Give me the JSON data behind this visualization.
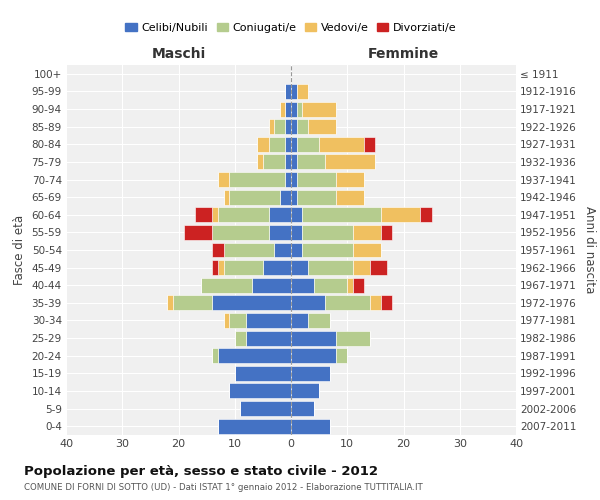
{
  "age_groups": [
    "0-4",
    "5-9",
    "10-14",
    "15-19",
    "20-24",
    "25-29",
    "30-34",
    "35-39",
    "40-44",
    "45-49",
    "50-54",
    "55-59",
    "60-64",
    "65-69",
    "70-74",
    "75-79",
    "80-84",
    "85-89",
    "90-94",
    "95-99",
    "100+"
  ],
  "birth_years": [
    "2007-2011",
    "2002-2006",
    "1997-2001",
    "1992-1996",
    "1987-1991",
    "1982-1986",
    "1977-1981",
    "1972-1976",
    "1967-1971",
    "1962-1966",
    "1957-1961",
    "1952-1956",
    "1947-1951",
    "1942-1946",
    "1937-1941",
    "1932-1936",
    "1927-1931",
    "1922-1926",
    "1917-1921",
    "1912-1916",
    "≤ 1911"
  ],
  "male_celibi": [
    13,
    9,
    11,
    10,
    13,
    8,
    8,
    14,
    7,
    5,
    3,
    4,
    4,
    2,
    1,
    1,
    1,
    1,
    1,
    1,
    0
  ],
  "male_coniugati": [
    0,
    0,
    0,
    0,
    1,
    2,
    3,
    7,
    9,
    7,
    9,
    10,
    9,
    9,
    10,
    4,
    3,
    2,
    0,
    0,
    0
  ],
  "male_vedovi": [
    0,
    0,
    0,
    0,
    0,
    0,
    1,
    1,
    0,
    1,
    0,
    0,
    1,
    1,
    2,
    1,
    2,
    1,
    1,
    0,
    0
  ],
  "male_divorziati": [
    0,
    0,
    0,
    0,
    0,
    0,
    0,
    0,
    0,
    1,
    2,
    5,
    3,
    0,
    0,
    0,
    0,
    0,
    0,
    0,
    0
  ],
  "female_celibi": [
    7,
    4,
    5,
    7,
    8,
    8,
    3,
    6,
    4,
    3,
    2,
    2,
    2,
    1,
    1,
    1,
    1,
    1,
    1,
    1,
    0
  ],
  "female_coniugati": [
    0,
    0,
    0,
    0,
    2,
    6,
    4,
    8,
    6,
    8,
    9,
    9,
    14,
    7,
    7,
    5,
    4,
    2,
    1,
    0,
    0
  ],
  "female_vedovi": [
    0,
    0,
    0,
    0,
    0,
    0,
    0,
    2,
    1,
    3,
    5,
    5,
    7,
    5,
    5,
    9,
    8,
    5,
    6,
    2,
    0
  ],
  "female_divorziati": [
    0,
    0,
    0,
    0,
    0,
    0,
    0,
    2,
    2,
    3,
    0,
    2,
    2,
    0,
    0,
    0,
    2,
    0,
    0,
    0,
    0
  ],
  "color_celibi": "#4472c4",
  "color_coniugati": "#b5cc8e",
  "color_vedovi": "#f0c060",
  "color_divorziati": "#cc2222",
  "xlim": 40,
  "title": "Popolazione per età, sesso e stato civile - 2012",
  "subtitle": "COMUNE DI FORNI DI SOTTO (UD) - Dati ISTAT 1° gennaio 2012 - Elaborazione TUTTITALIA.IT",
  "ylabel_left": "Fasce di età",
  "ylabel_right": "Anni di nascita",
  "label_maschi": "Maschi",
  "label_femmine": "Femmine",
  "legend_celibi": "Celibi/Nubili",
  "legend_coniugati": "Coniugati/e",
  "legend_vedovi": "Vedovi/e",
  "legend_divorziati": "Divorziati/e",
  "bg_color": "#f0f0f0",
  "bar_height": 0.85
}
